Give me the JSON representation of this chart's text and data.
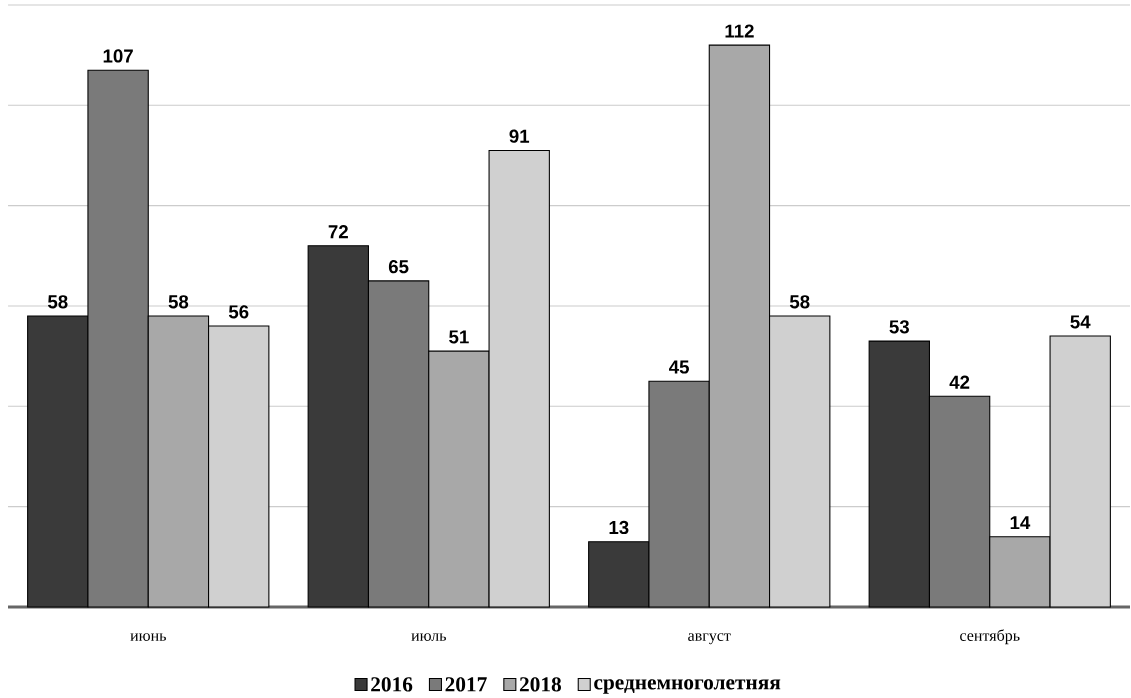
{
  "chart_data": {
    "type": "bar",
    "categories": [
      "июнь",
      "июль",
      "август",
      "сентябрь"
    ],
    "series": [
      {
        "name": "2016",
        "color": "#3a3a3a",
        "values": [
          58,
          72,
          13,
          53
        ]
      },
      {
        "name": "2017",
        "color": "#7a7a7a",
        "values": [
          107,
          65,
          45,
          42
        ]
      },
      {
        "name": "2018",
        "color": "#a8a8a8",
        "values": [
          58,
          51,
          112,
          14
        ]
      },
      {
        "name": "среднемноголетняя",
        "color": "#d0d0d0",
        "values": [
          56,
          91,
          58,
          54
        ]
      }
    ],
    "ylim": [
      0,
      120
    ],
    "yticks": [
      {
        "value": 0,
        "label": null
      },
      {
        "value": 20,
        "label": null
      },
      {
        "value": 40,
        "label": null
      },
      {
        "value": 60,
        "label": null
      },
      {
        "value": 80,
        "label": null
      },
      {
        "value": 100,
        "label": null
      },
      {
        "value": 120,
        "label": null
      }
    ],
    "tick_labels": "x",
    "grid": "y",
    "legend": "bottom",
    "data_labels": true
  }
}
